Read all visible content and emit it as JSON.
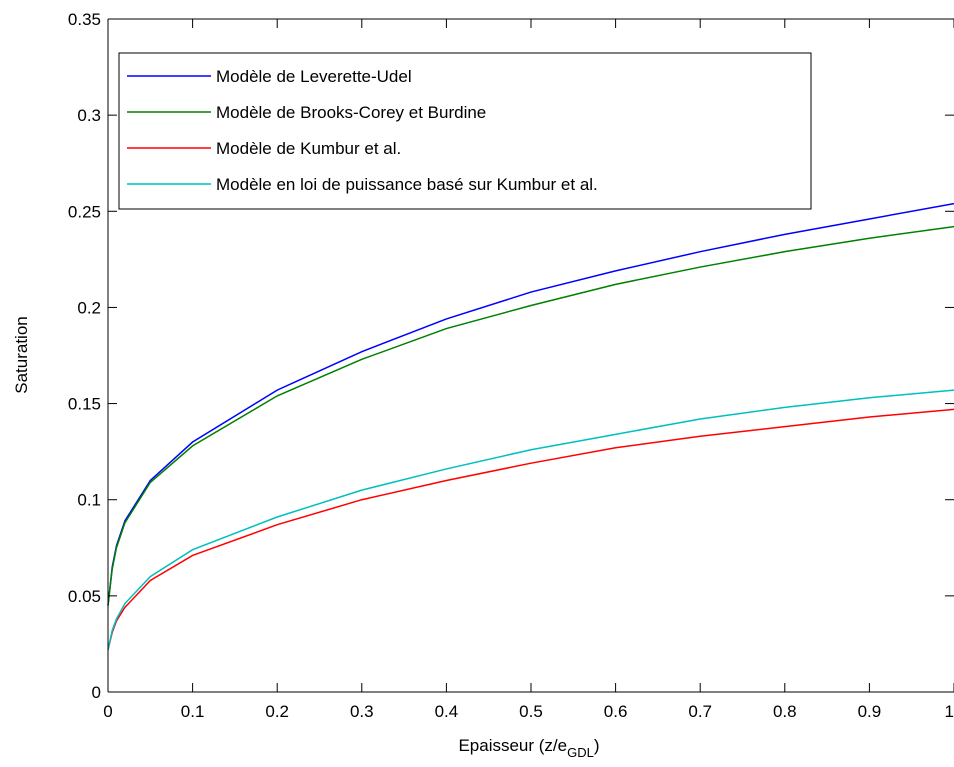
{
  "chart_data": {
    "type": "line",
    "title": "",
    "xlabel": "Epaisseur (z/e",
    "xlabel_subscript": "GDL",
    "xlabel_suffix": ")",
    "ylabel": "Saturation",
    "xlim": [
      0,
      1
    ],
    "ylim": [
      0,
      0.35
    ],
    "x_ticks": [
      0,
      0.1,
      0.2,
      0.3,
      0.4,
      0.5,
      0.6,
      0.7,
      0.8,
      0.9,
      1
    ],
    "x_tick_labels": [
      "0",
      "0.1",
      "0.2",
      "0.3",
      "0.4",
      "0.5",
      "0.6",
      "0.7",
      "0.8",
      "0.9",
      "1"
    ],
    "y_ticks": [
      0,
      0.05,
      0.1,
      0.15,
      0.2,
      0.25,
      0.3,
      0.35
    ],
    "y_tick_labels": [
      "0",
      "0.05",
      "0.1",
      "0.15",
      "0.2",
      "0.25",
      "0.3",
      "0.35"
    ],
    "grid": false,
    "legend_position": "top-left",
    "x": [
      0,
      0.005,
      0.01,
      0.02,
      0.05,
      0.1,
      0.2,
      0.3,
      0.4,
      0.5,
      0.6,
      0.7,
      0.8,
      0.9,
      1.0
    ],
    "series": [
      {
        "name": "Modèle de Leverette-Udel",
        "color": "#0000ff",
        "values": [
          0.045,
          0.065,
          0.076,
          0.089,
          0.11,
          0.13,
          0.157,
          0.177,
          0.194,
          0.208,
          0.219,
          0.229,
          0.238,
          0.246,
          0.254
        ]
      },
      {
        "name": "Modèle de Brooks-Corey et Burdine",
        "color": "#008000",
        "values": [
          0.045,
          0.064,
          0.075,
          0.088,
          0.109,
          0.128,
          0.154,
          0.173,
          0.189,
          0.201,
          0.212,
          0.221,
          0.229,
          0.236,
          0.242
        ]
      },
      {
        "name": "Modèle de Kumbur et al.",
        "color": "#ff0000",
        "values": [
          0.022,
          0.031,
          0.037,
          0.044,
          0.058,
          0.071,
          0.087,
          0.1,
          0.11,
          0.119,
          0.127,
          0.133,
          0.138,
          0.143,
          0.147
        ]
      },
      {
        "name": "Modèle en loi de puissance basé sur Kumbur et al.",
        "color": "#00bfbf",
        "values": [
          0.022,
          0.032,
          0.038,
          0.046,
          0.06,
          0.074,
          0.091,
          0.105,
          0.116,
          0.126,
          0.134,
          0.142,
          0.148,
          0.153,
          0.157
        ]
      }
    ]
  }
}
